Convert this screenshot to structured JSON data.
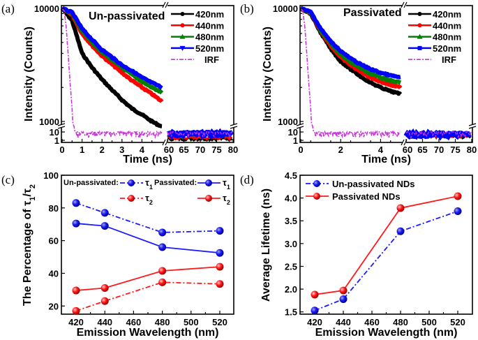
{
  "chart_data": [
    {
      "type": "line",
      "panel_label": "(a)",
      "annotation": "Un-passivated",
      "xlabel": "Time (ns)",
      "ylabel": "Intensity (Counts)",
      "yscale": "log",
      "broken_axes": true,
      "x_ticks_left": [
        "0",
        "1",
        "2",
        "3",
        "4"
      ],
      "x_ticks_right": [
        "60",
        "65",
        "70",
        "75",
        "80"
      ],
      "y_ticks_upper": [
        "10000",
        "1000"
      ],
      "y_ticks_lower": [
        "10",
        "1"
      ],
      "legend_position": "top-right",
      "x": [
        0,
        0.5,
        1,
        1.5,
        2,
        2.5,
        3,
        3.5,
        4,
        4.5,
        5
      ],
      "series": [
        {
          "name": "420nm",
          "color": "#000000",
          "marker": "circle",
          "values": [
            10000,
            7800,
            4000,
            3000,
            2350,
            1900,
            1550,
            1300,
            1150,
            1000,
            900
          ],
          "tail_level": 1.5
        },
        {
          "name": "440nm",
          "color": "#ff0000",
          "marker": "circle",
          "values": [
            10000,
            8800,
            6000,
            4700,
            3800,
            3200,
            2700,
            2300,
            2000,
            1750,
            1500
          ],
          "tail_level": 2
        },
        {
          "name": "480nm",
          "color": "#008000",
          "marker": "triangle-up",
          "values": [
            10000,
            9000,
            6300,
            5000,
            4100,
            3500,
            3000,
            2600,
            2250,
            2000,
            1800
          ],
          "tail_level": 4
        },
        {
          "name": "520nm",
          "color": "#0000ff",
          "marker": "triangle-down",
          "values": [
            10000,
            9200,
            6600,
            5300,
            4300,
            3700,
            3150,
            2800,
            2450,
            2200,
            2000
          ],
          "tail_level": 6
        }
      ],
      "irf": {
        "name": "IRF",
        "color": "#cc33dd",
        "style": "dash-dot",
        "x": [
          0,
          0.1,
          0.2,
          0.3,
          0.4,
          0.5,
          0.6,
          0.7,
          0.8,
          1,
          5
        ],
        "values": [
          10000,
          9500,
          7000,
          4000,
          2200,
          1300,
          500,
          10,
          7,
          7,
          7
        ],
        "tail_level": 7
      }
    },
    {
      "type": "line",
      "panel_label": "(b)",
      "annotation": "Passivated",
      "xlabel": "Time (ns)",
      "ylabel": "Intensity (Counts)",
      "yscale": "log",
      "broken_axes": true,
      "x_ticks_left": [
        "0",
        "2",
        "4"
      ],
      "x_ticks_right": [
        "60",
        "65",
        "70",
        "75",
        "80"
      ],
      "y_ticks_upper": [
        "10000",
        "1000"
      ],
      "y_ticks_lower": [
        "10",
        "1"
      ],
      "legend_position": "top-right",
      "x": [
        0,
        0.5,
        1,
        1.5,
        2,
        2.5,
        3,
        3.5,
        4,
        4.5,
        5
      ],
      "series": [
        {
          "name": "420nm",
          "color": "#000000",
          "marker": "circle",
          "values": [
            10000,
            9000,
            6100,
            4400,
            3400,
            2900,
            2500,
            2200,
            2000,
            1850,
            1750
          ],
          "tail_level": 3
        },
        {
          "name": "440nm",
          "color": "#ff0000",
          "marker": "circle",
          "values": [
            10000,
            9100,
            6300,
            4700,
            3700,
            3150,
            2750,
            2450,
            2250,
            2100,
            2000
          ],
          "tail_level": 3.5
        },
        {
          "name": "480nm",
          "color": "#008000",
          "marker": "triangle-up",
          "values": [
            10000,
            9200,
            6400,
            4900,
            3900,
            3350,
            2950,
            2650,
            2450,
            2300,
            2200
          ],
          "tail_level": 4.5
        },
        {
          "name": "520nm",
          "color": "#0000ff",
          "marker": "square",
          "values": [
            10000,
            9300,
            6600,
            5100,
            4200,
            3600,
            3200,
            2900,
            2700,
            2550,
            2450
          ],
          "tail_level": 5
        }
      ],
      "irf": {
        "name": "IRF",
        "color": "#cc33dd",
        "style": "dash-dot",
        "x": [
          0,
          0.1,
          0.2,
          0.3,
          0.4,
          0.5,
          0.6,
          0.7,
          0.8,
          1,
          5
        ],
        "values": [
          10000,
          9500,
          7000,
          4000,
          2200,
          1300,
          500,
          10,
          7,
          7,
          7
        ],
        "tail_level": 7
      }
    },
    {
      "type": "line",
      "panel_label": "(c)",
      "xlabel": "Emission Wavelength (nm)",
      "ylabel_parts": [
        "The Percentage of τ",
        "1",
        "/τ",
        "2"
      ],
      "ylim": [
        15,
        100
      ],
      "y_ticks": [
        "20",
        "40",
        "60",
        "80",
        "100"
      ],
      "x_ticks": [
        "420",
        "440",
        "460",
        "480",
        "500",
        "520"
      ],
      "categories": [
        420,
        440,
        480,
        520
      ],
      "legend": {
        "group1": "Un-passivated:",
        "group2": "Passivated:",
        "tau": "τ",
        "sub1": "1",
        "sub2": "2"
      },
      "series": [
        {
          "group": "Un-passivated",
          "name": "τ1",
          "color": "#1a1aff",
          "style": "dash-dot",
          "values": [
            83,
            77,
            65,
            66
          ]
        },
        {
          "group": "Passivated",
          "name": "τ1",
          "color": "#1a1aff",
          "style": "solid",
          "values": [
            70.5,
            69,
            56,
            52.5
          ]
        },
        {
          "group": "Un-passivated",
          "name": "τ2",
          "color": "#ff1a1a",
          "style": "dash-dot",
          "values": [
            17,
            23,
            34.5,
            33.5
          ]
        },
        {
          "group": "Passivated",
          "name": "τ2",
          "color": "#ff1a1a",
          "style": "solid",
          "values": [
            29.5,
            31,
            41.5,
            44
          ]
        }
      ]
    },
    {
      "type": "line",
      "panel_label": "(d)",
      "xlabel": "Emission Wavelength (nm)",
      "ylabel": "Average Lifetime (ns)",
      "ylim": [
        1.45,
        4.5
      ],
      "y_ticks": [
        "1.5",
        "2.0",
        "2.5",
        "3.0",
        "3.5",
        "4.0",
        "4.5"
      ],
      "x_ticks": [
        "420",
        "440",
        "460",
        "480",
        "500",
        "520"
      ],
      "categories": [
        420,
        440,
        480,
        520
      ],
      "legend_position": "top-left",
      "series": [
        {
          "name": "Un-passivated NDs",
          "color": "#1a1aff",
          "style": "dash-dot",
          "values": [
            1.53,
            1.78,
            3.27,
            3.71
          ]
        },
        {
          "name": "Passivated NDs",
          "color": "#ff1a1a",
          "style": "solid",
          "values": [
            1.88,
            1.97,
            3.78,
            4.04
          ]
        }
      ]
    }
  ]
}
